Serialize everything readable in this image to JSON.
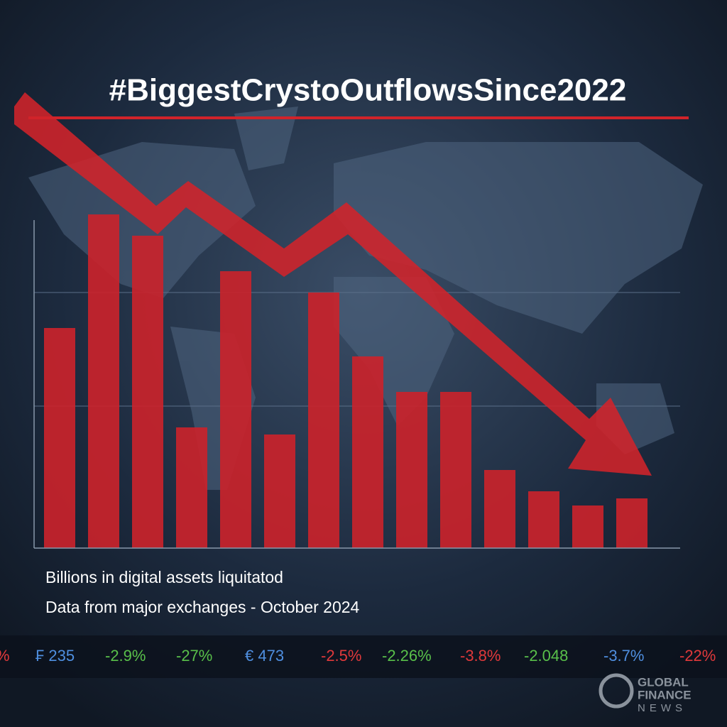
{
  "chart_data": {
    "type": "bar",
    "title": "#BiggestCrystoOutflowsSince2022",
    "subtitle": [
      "Billions in digital assets liquitatod",
      "Data from major exchanges - October 2024"
    ],
    "values": [
      31,
      47,
      44,
      17,
      39,
      16,
      36,
      27,
      22,
      22,
      11,
      8,
      6,
      7
    ],
    "color": "#c9232b",
    "ylim": [
      0,
      50
    ]
  },
  "ticker": [
    {
      "text": "%",
      "color": "#e0393b"
    },
    {
      "text": "₣ 235",
      "color": "#4f8fe0"
    },
    {
      "text": "-2.9%",
      "color": "#59c04a"
    },
    {
      "text": "-27%",
      "color": "#59c04a"
    },
    {
      "text": "€ 473",
      "color": "#4f8fe0"
    },
    {
      "text": "-2.5%",
      "color": "#e0393b"
    },
    {
      "text": "-2.26%",
      "color": "#59c04a"
    },
    {
      "text": "-3.8%",
      "color": "#e0393b"
    },
    {
      "text": "-2.048",
      "color": "#59c04a"
    },
    {
      "text": "-3.7%",
      "color": "#4f8fe0"
    },
    {
      "text": "-22%",
      "color": "#e0393b"
    }
  ],
  "logo": [
    "GLOBAL",
    "FINANCE",
    "NEWS"
  ]
}
